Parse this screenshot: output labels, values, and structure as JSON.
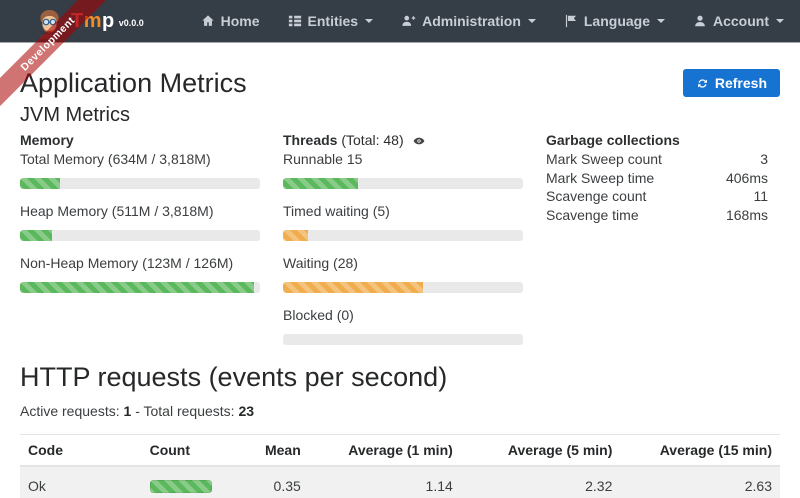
{
  "colors": {
    "navbar_bg": "#353d47",
    "brand_t": "#e05252",
    "brand_m": "#f28c28",
    "brand_p": "#ffffff",
    "ribbon_bg": "rgba(170,0,0,0.55)",
    "primary": "#1673d1",
    "success": "#5cb85c",
    "warning": "#f0ad4e",
    "danger": "#d9534f",
    "track": "#e9e9e9",
    "row_stripe": "#f1f1f1"
  },
  "ribbon": {
    "label": "Development"
  },
  "navbar": {
    "brand": {
      "t": "T",
      "m": "m",
      "p": "p",
      "version": "v0.0.0"
    },
    "items": [
      {
        "label": "Home",
        "icon": "home-icon",
        "caret": false
      },
      {
        "label": "Entities",
        "icon": "list-icon",
        "caret": true
      },
      {
        "label": "Administration",
        "icon": "user-plus-icon",
        "caret": true
      },
      {
        "label": "Language",
        "icon": "flag-icon",
        "caret": true
      },
      {
        "label": "Account",
        "icon": "user-icon",
        "caret": true
      }
    ]
  },
  "page": {
    "title": "Application Metrics",
    "refresh_label": "Refresh"
  },
  "jvm": {
    "title": "JVM Metrics",
    "memory": {
      "header": "Memory",
      "items": [
        {
          "label": "Total Memory (634M / 3,818M)",
          "pct": 16.6,
          "color": "success"
        },
        {
          "label": "Heap Memory (511M / 3,818M)",
          "pct": 13.4,
          "color": "success"
        },
        {
          "label": "Non-Heap Memory (123M / 126M)",
          "pct": 97.6,
          "color": "success"
        }
      ]
    },
    "threads": {
      "header": "Threads",
      "total": "(Total: 48)",
      "items": [
        {
          "label": "Runnable 15",
          "pct": 31.3,
          "color": "success"
        },
        {
          "label": "Timed waiting (5)",
          "pct": 10.4,
          "color": "warning"
        },
        {
          "label": "Waiting (28)",
          "pct": 58.3,
          "color": "warning"
        },
        {
          "label": "Blocked (0)",
          "pct": 0,
          "color": "danger"
        }
      ]
    },
    "gc": {
      "header": "Garbage collections",
      "rows": [
        {
          "label": "Mark Sweep count",
          "value": "3"
        },
        {
          "label": "Mark Sweep time",
          "value": "406ms"
        },
        {
          "label": "Scavenge count",
          "value": "11"
        },
        {
          "label": "Scavenge time",
          "value": "168ms"
        }
      ]
    }
  },
  "http": {
    "title": "HTTP requests (events per second)",
    "active_label": "Active requests:",
    "active_value": "1",
    "separator": "-",
    "total_label": "Total requests:",
    "total_value": "23",
    "table": {
      "headers": [
        "Code",
        "Count",
        "Mean",
        "Average (1 min)",
        "Average (5 min)",
        "Average (15 min)"
      ],
      "row": {
        "code": "Ok",
        "count_pct": 100,
        "mean": "0.35",
        "avg_1min": "1.14",
        "avg_5min": "2.32",
        "avg_15min": "2.63"
      }
    }
  }
}
